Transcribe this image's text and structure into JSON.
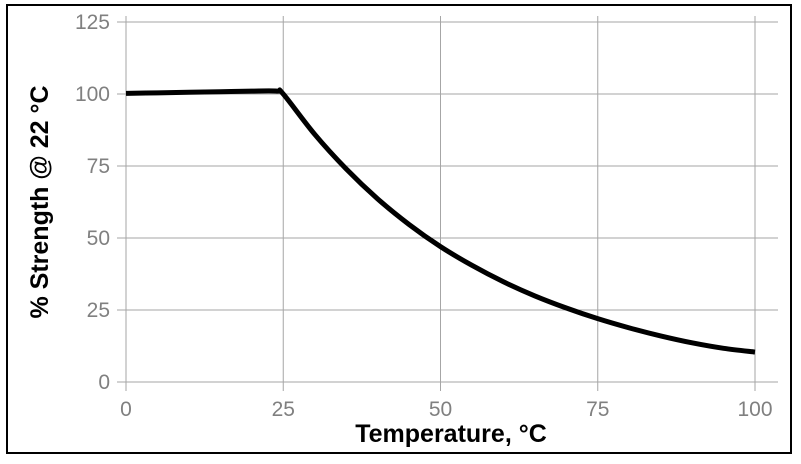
{
  "chart_data": {
    "type": "line",
    "title": "",
    "xlabel": "Temperature, °C",
    "ylabel": "% Strength @ 22 °C",
    "xlim": [
      0,
      100
    ],
    "ylim": [
      0,
      125
    ],
    "xticks": [
      "0",
      "25",
      "50",
      "75",
      "100"
    ],
    "yticks": [
      "0",
      "25",
      "50",
      "75",
      "100",
      "125"
    ],
    "grid": true,
    "legend": "none",
    "series": [
      {
        "name": "strength",
        "color": "#000000",
        "x": [
          0,
          5,
          10,
          15,
          20,
          24,
          25,
          30,
          35,
          40,
          45,
          50,
          55,
          60,
          65,
          70,
          75,
          80,
          85,
          90,
          95,
          100
        ],
        "y": [
          100.2,
          100.4,
          100.6,
          100.8,
          101,
          101,
          100,
          86,
          74,
          63.6,
          54.7,
          47,
          40.5,
          34.8,
          29.9,
          25.7,
          22,
          18.8,
          16,
          13.6,
          11.7,
          10.4
        ]
      }
    ]
  }
}
